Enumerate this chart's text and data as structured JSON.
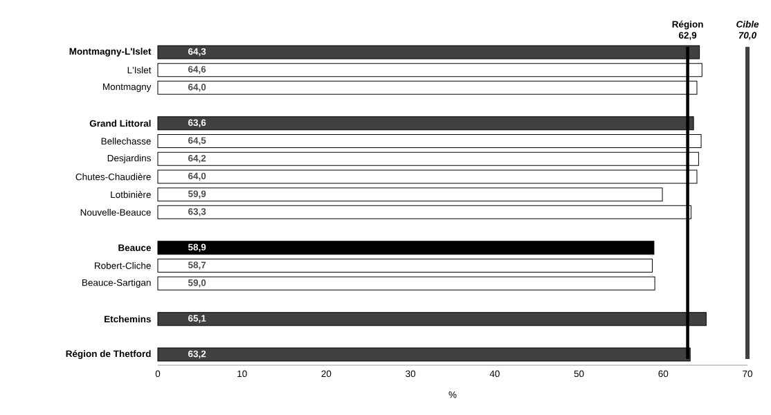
{
  "chart_data": {
    "type": "bar",
    "orientation": "horizontal",
    "xlabel": "%",
    "categories": [
      "Montmagny-L'Islet",
      "L'Islet",
      "Montmagny",
      null,
      "Grand Littoral",
      "Bellechasse",
      "Desjardins",
      "Chutes-Chaudière",
      "Lotbinière",
      "Nouvelle-Beauce",
      null,
      "Beauce",
      "Robert-Cliche",
      "Beauce-Sartigan",
      null,
      "Etchemins",
      null,
      "Région de Thetford"
    ],
    "values": [
      64.3,
      64.6,
      64.0,
      null,
      63.6,
      64.5,
      64.2,
      64.0,
      59.9,
      63.3,
      null,
      58.9,
      58.7,
      59.0,
      null,
      65.1,
      null,
      63.2
    ],
    "colors": [
      "#404040",
      "#ffffff",
      "#ffffff",
      null,
      "#404040",
      "#ffffff",
      "#ffffff",
      "#ffffff",
      "#ffffff",
      "#ffffff",
      null,
      "#000000",
      "#ffffff",
      "#ffffff",
      null,
      "#404040",
      null,
      "#404040"
    ],
    "value_labels": [
      "64,3",
      "64,6",
      "64,0",
      null,
      "63,6",
      "64,5",
      "64,2",
      "64,0",
      "59,9",
      "63,3",
      null,
      "58,9",
      "58,7",
      "59,0",
      null,
      "65,1",
      null,
      "63,2"
    ],
    "xlim": [
      0,
      70
    ],
    "xticks": [
      0,
      10,
      20,
      30,
      40,
      50,
      60,
      70
    ],
    "ref_lines": [
      {
        "axis": "x",
        "value": 62.9,
        "label": "Région 62,9",
        "color": "#000000"
      },
      {
        "axis": "x",
        "value": 70.0,
        "label": "Cible 70,0",
        "color": "#404040"
      }
    ],
    "grid": false
  }
}
